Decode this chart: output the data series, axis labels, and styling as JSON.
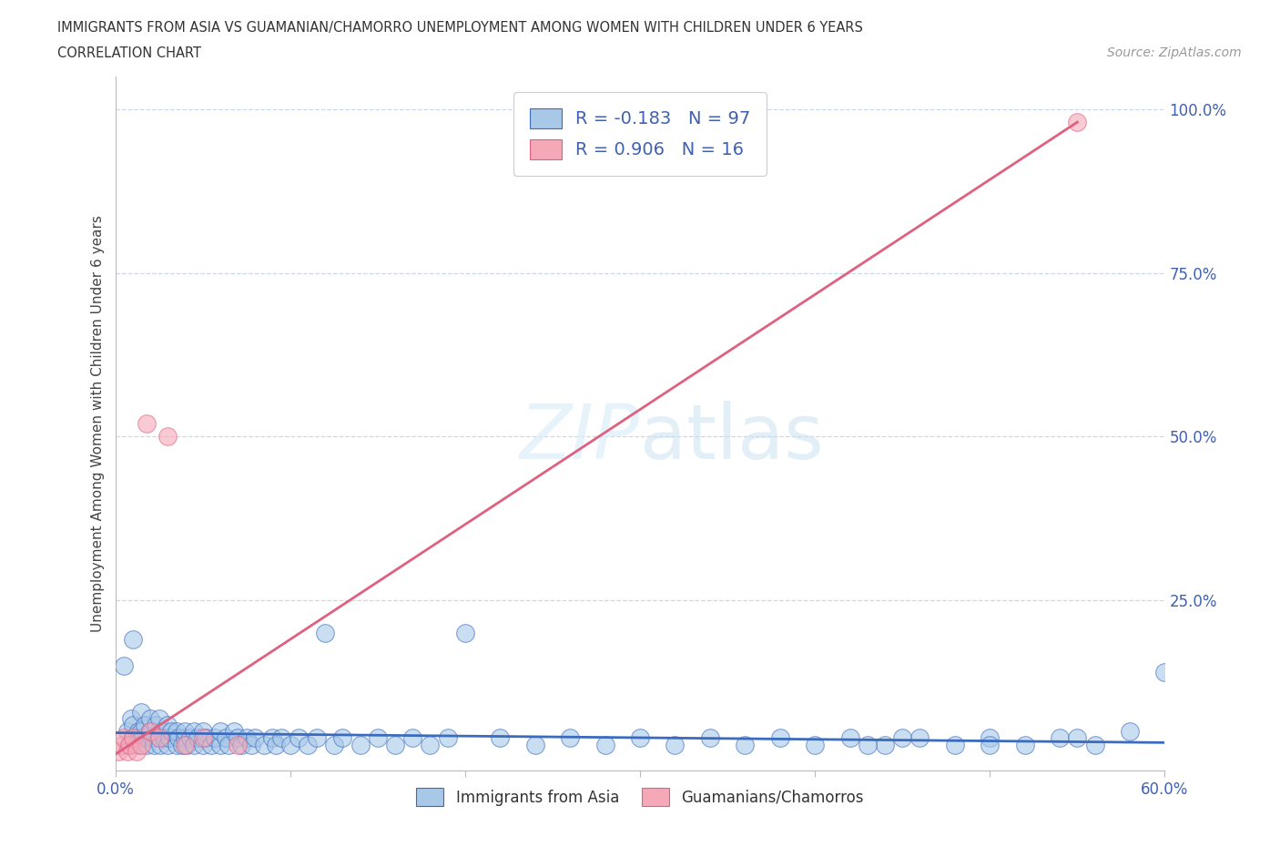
{
  "title_line1": "IMMIGRANTS FROM ASIA VS GUAMANIAN/CHAMORRO UNEMPLOYMENT AMONG WOMEN WITH CHILDREN UNDER 6 YEARS",
  "title_line2": "CORRELATION CHART",
  "source_text": "Source: ZipAtlas.com",
  "ylabel": "Unemployment Among Women with Children Under 6 years",
  "xlim": [
    0.0,
    0.6
  ],
  "ylim": [
    -0.01,
    1.05
  ],
  "color_asia": "#a8c8e8",
  "color_guam": "#f4a8b8",
  "line_color_asia": "#3a6bbf",
  "line_color_guam": "#e06080",
  "legend_r_asia": "R = -0.183",
  "legend_n_asia": "N = 97",
  "legend_r_guam": "R = 0.906",
  "legend_n_guam": "N = 16",
  "watermark": "ZIPatlas",
  "asia_line_x0": 0.0,
  "asia_line_x1": 0.6,
  "asia_line_y0": 0.048,
  "asia_line_y1": 0.033,
  "guam_line_x0": 0.0,
  "guam_line_x1": 0.55,
  "guam_line_y0": 0.015,
  "guam_line_y1": 0.98,
  "asia_x": [
    0.005,
    0.007,
    0.008,
    0.009,
    0.01,
    0.01,
    0.01,
    0.012,
    0.013,
    0.014,
    0.015,
    0.015,
    0.016,
    0.017,
    0.018,
    0.02,
    0.02,
    0.021,
    0.022,
    0.023,
    0.025,
    0.025,
    0.026,
    0.027,
    0.028,
    0.03,
    0.03,
    0.031,
    0.032,
    0.035,
    0.035,
    0.036,
    0.038,
    0.04,
    0.04,
    0.041,
    0.043,
    0.045,
    0.045,
    0.047,
    0.05,
    0.05,
    0.052,
    0.055,
    0.057,
    0.06,
    0.06,
    0.063,
    0.065,
    0.068,
    0.07,
    0.072,
    0.075,
    0.078,
    0.08,
    0.085,
    0.09,
    0.092,
    0.095,
    0.1,
    0.105,
    0.11,
    0.115,
    0.12,
    0.125,
    0.13,
    0.14,
    0.15,
    0.16,
    0.17,
    0.18,
    0.19,
    0.2,
    0.22,
    0.24,
    0.26,
    0.28,
    0.3,
    0.32,
    0.34,
    0.36,
    0.38,
    0.4,
    0.42,
    0.44,
    0.46,
    0.48,
    0.5,
    0.52,
    0.54,
    0.56,
    0.58,
    0.6,
    0.55,
    0.5,
    0.45,
    0.43
  ],
  "asia_y": [
    0.15,
    0.05,
    0.03,
    0.07,
    0.04,
    0.06,
    0.19,
    0.03,
    0.05,
    0.04,
    0.05,
    0.08,
    0.04,
    0.06,
    0.03,
    0.05,
    0.07,
    0.04,
    0.03,
    0.06,
    0.04,
    0.07,
    0.03,
    0.05,
    0.04,
    0.03,
    0.06,
    0.04,
    0.05,
    0.03,
    0.05,
    0.04,
    0.03,
    0.04,
    0.05,
    0.03,
    0.04,
    0.03,
    0.05,
    0.04,
    0.03,
    0.05,
    0.04,
    0.03,
    0.04,
    0.03,
    0.05,
    0.04,
    0.03,
    0.05,
    0.04,
    0.03,
    0.04,
    0.03,
    0.04,
    0.03,
    0.04,
    0.03,
    0.04,
    0.03,
    0.04,
    0.03,
    0.04,
    0.2,
    0.03,
    0.04,
    0.03,
    0.04,
    0.03,
    0.04,
    0.03,
    0.04,
    0.2,
    0.04,
    0.03,
    0.04,
    0.03,
    0.04,
    0.03,
    0.04,
    0.03,
    0.04,
    0.03,
    0.04,
    0.03,
    0.04,
    0.03,
    0.04,
    0.03,
    0.04,
    0.03,
    0.05,
    0.14,
    0.04,
    0.03,
    0.04,
    0.03
  ],
  "guam_x": [
    0.002,
    0.004,
    0.005,
    0.007,
    0.008,
    0.01,
    0.012,
    0.015,
    0.018,
    0.02,
    0.025,
    0.03,
    0.04,
    0.05,
    0.07,
    0.55
  ],
  "guam_y": [
    0.02,
    0.03,
    0.04,
    0.02,
    0.03,
    0.04,
    0.02,
    0.03,
    0.52,
    0.05,
    0.04,
    0.5,
    0.03,
    0.04,
    0.03,
    0.98
  ]
}
